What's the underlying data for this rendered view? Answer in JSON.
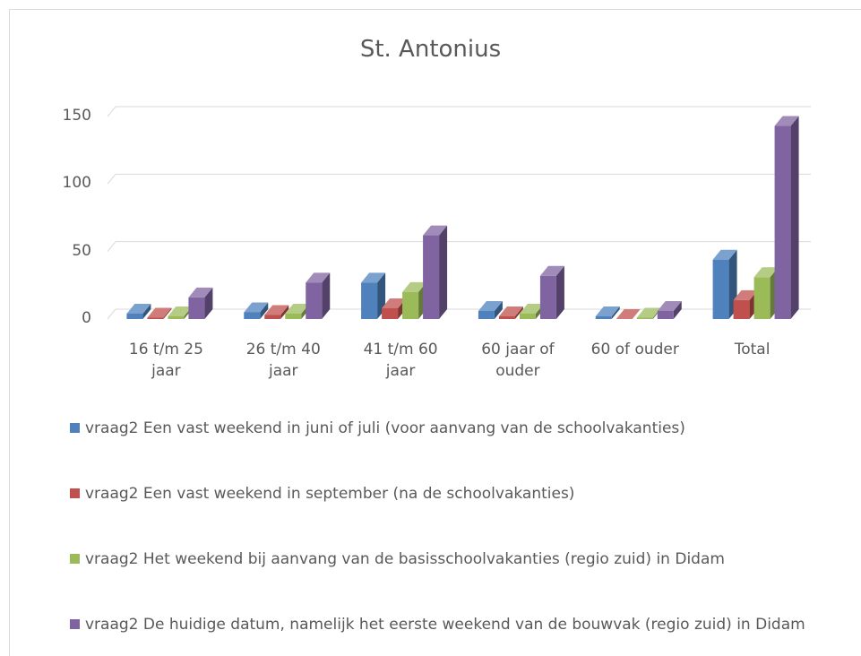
{
  "chart_data": {
    "type": "bar3d",
    "title": "St. Antonius",
    "categories": [
      "16 t/m 25 jaar",
      "26 t/m 40 jaar",
      "41 t/m 60 jaar",
      "60 jaar of ouder",
      "60 of ouder",
      "Total"
    ],
    "series": [
      {
        "name": "vraag2 Een vast weekend in juni of juli (voor aanvang van de schoolvakanties)",
        "color": "#4f81bd",
        "values": [
          4,
          5,
          27,
          6,
          2,
          44
        ]
      },
      {
        "name": "vraag2 Een vast weekend in september (na de schoolvakanties)",
        "color": "#c0504d",
        "values": [
          1,
          3,
          8,
          2,
          0,
          14
        ]
      },
      {
        "name": "vraag2 Het weekend bij aanvang van de basisschoolvakanties (regio zuid) in Didam",
        "color": "#9bbb59",
        "values": [
          2,
          4,
          20,
          4,
          1,
          31
        ]
      },
      {
        "name": "vraag2 De huidige datum, namelijk het eerste weekend van de bouwvak (regio zuid) in Didam",
        "color": "#8064a2",
        "values": [
          16,
          27,
          62,
          32,
          6,
          143
        ]
      }
    ],
    "ylim": [
      0,
      150
    ],
    "yticks": [
      0,
      50,
      100,
      150
    ],
    "grid": true,
    "legend": "bottom"
  }
}
